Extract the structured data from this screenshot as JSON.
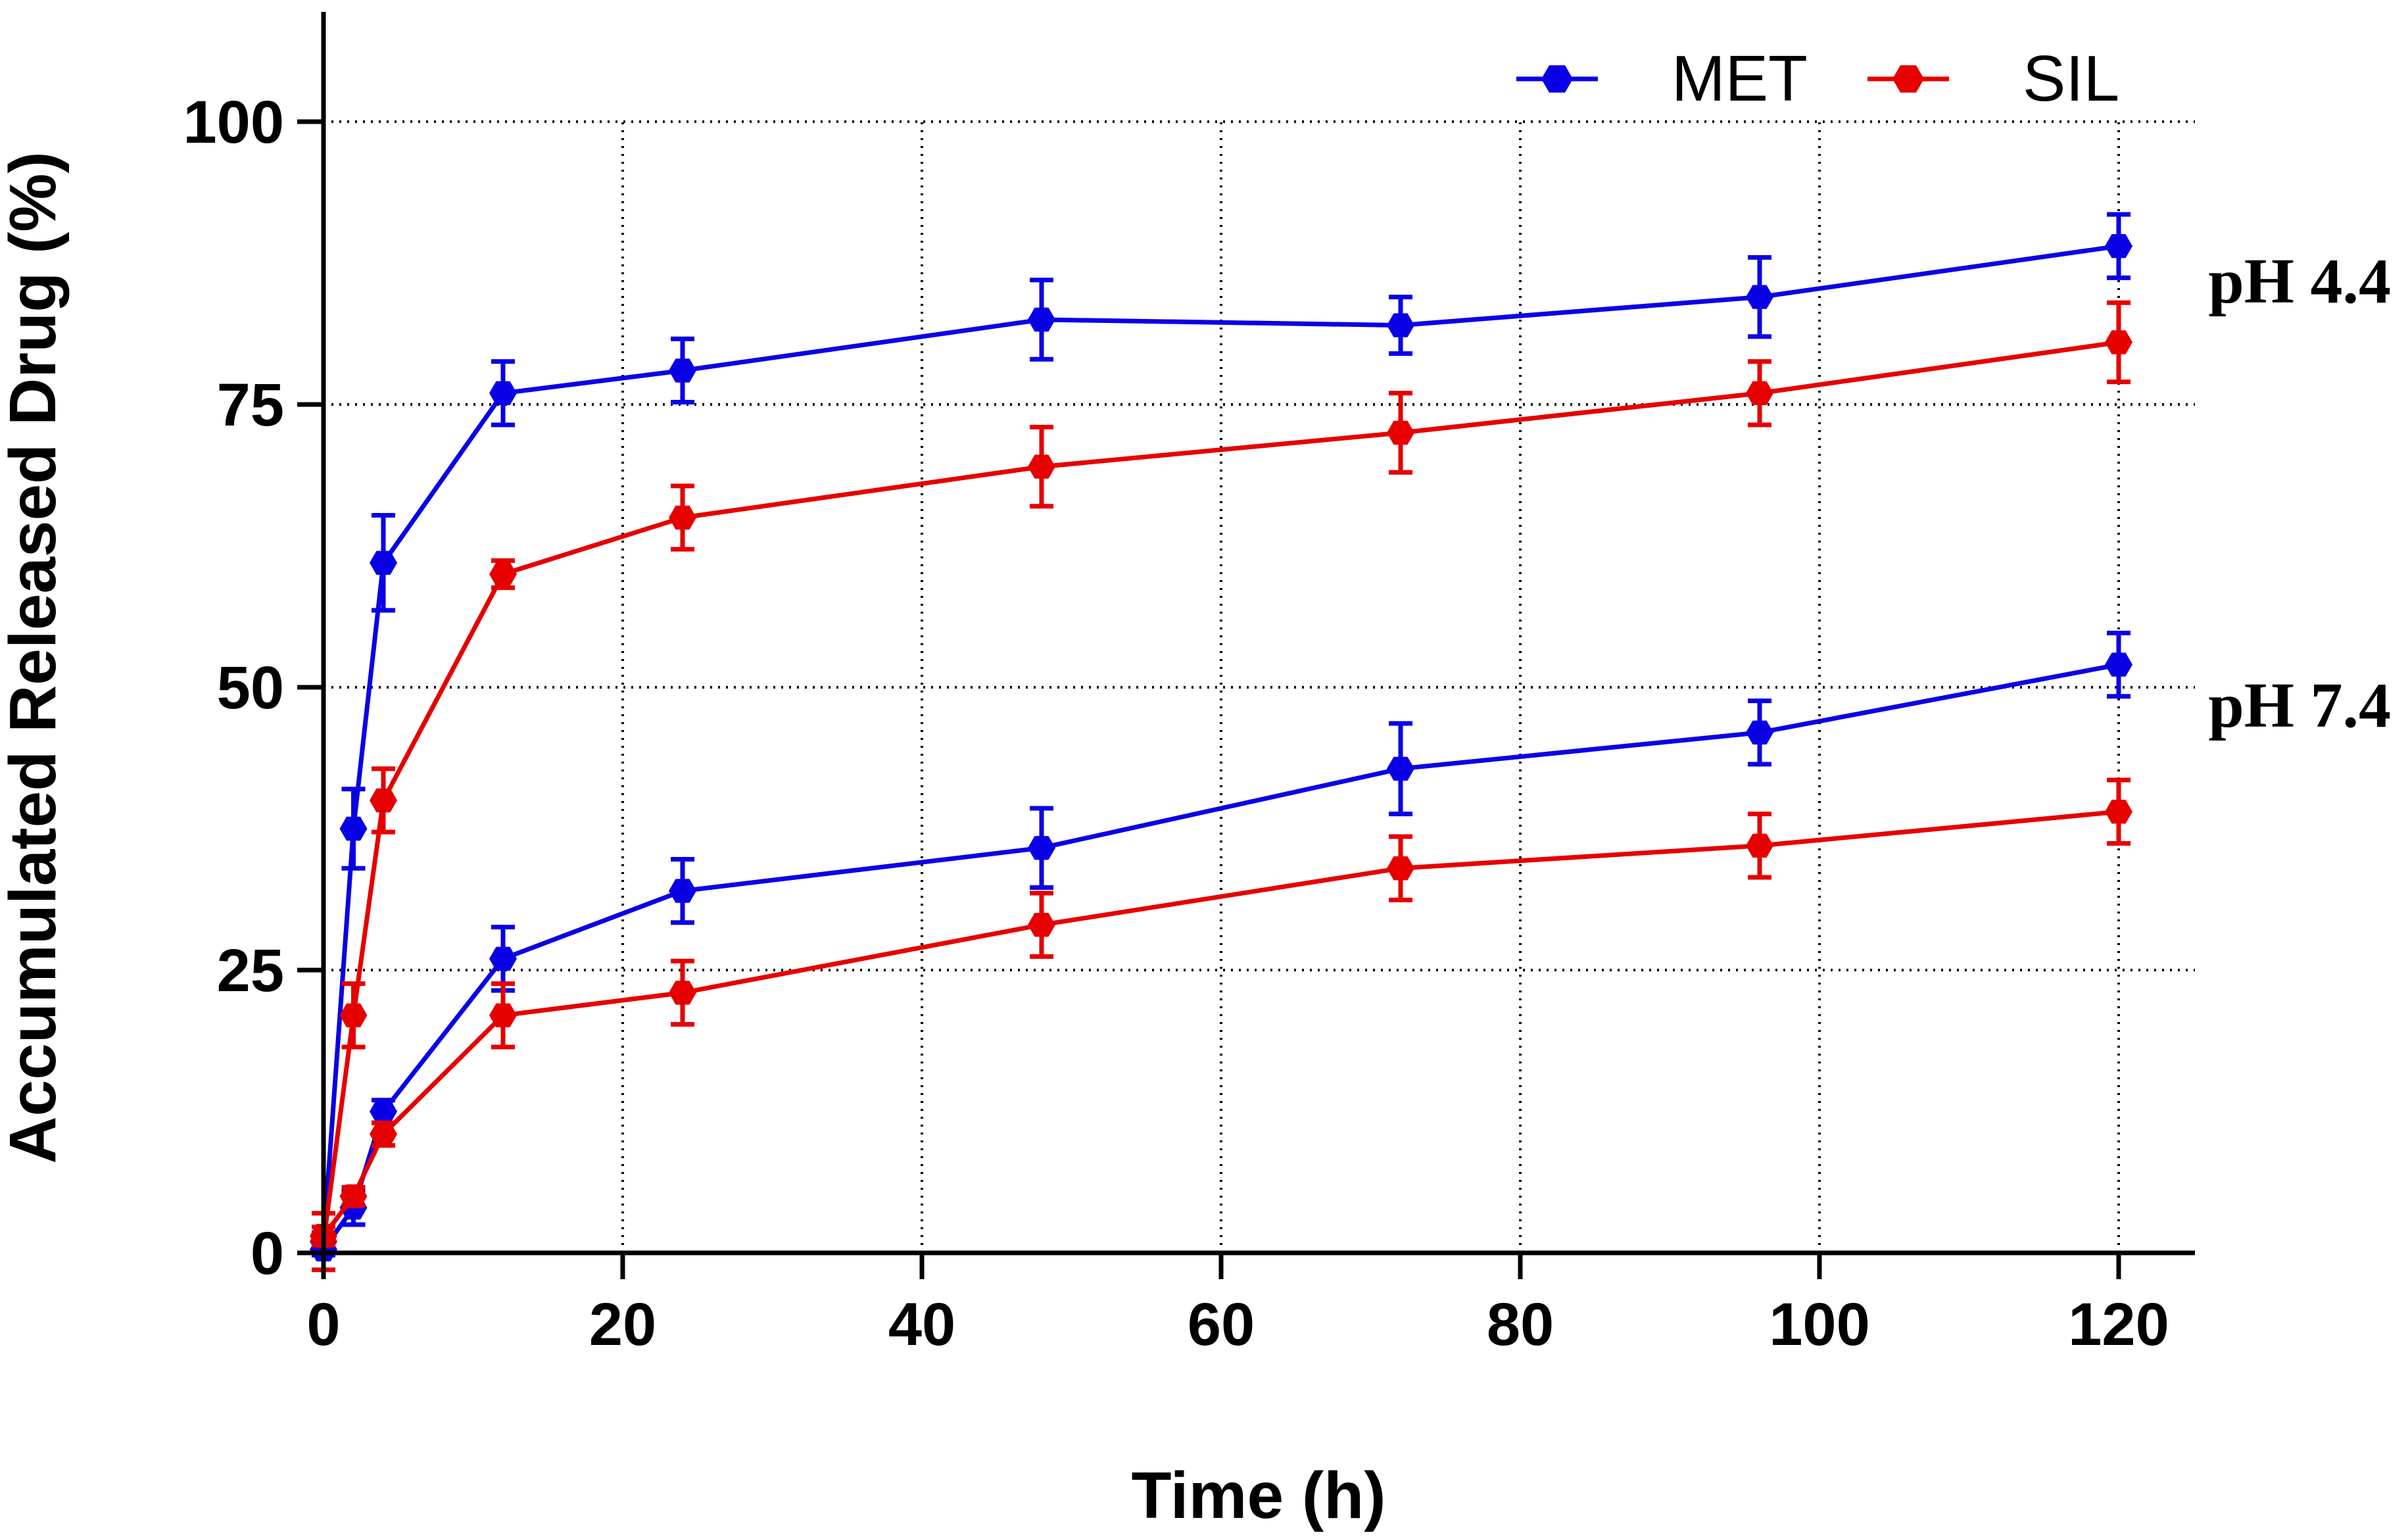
{
  "chart_data": {
    "type": "line",
    "xlabel": "Time (h)",
    "ylabel": "Accumulated Released Drug (%)",
    "xlim": [
      0,
      125
    ],
    "ylim": [
      0,
      110
    ],
    "xticks": [
      0,
      20,
      40,
      60,
      80,
      100,
      120
    ],
    "yticks": [
      0,
      25,
      50,
      75,
      100
    ],
    "x_tick_labels": [
      "0",
      "20",
      "40",
      "60",
      "80",
      "100",
      "120"
    ],
    "y_tick_labels": [
      "0",
      "25",
      "50",
      "75",
      "100"
    ],
    "grid": "dotted",
    "legend": {
      "position": "top-right",
      "entries": [
        {
          "name": "MET",
          "color": "#0a00e6"
        },
        {
          "name": "SIL",
          "color": "#e60000"
        }
      ]
    },
    "annotations": [
      {
        "text": "pH 4.4",
        "x": 121,
        "y": 86
      },
      {
        "text": "pH 7.4",
        "x": 121,
        "y": 48.5
      }
    ],
    "series": [
      {
        "name": "MET",
        "condition": "pH 4.4",
        "color": "#0a00e6",
        "x": [
          0,
          2,
          4,
          12,
          24,
          48,
          72,
          96,
          120
        ],
        "y": [
          1,
          37.5,
          61,
          76,
          78,
          82.5,
          82,
          84.5,
          89
        ],
        "err": [
          0.8,
          3.5,
          4.2,
          2.8,
          2.8,
          3.5,
          2.5,
          3.5,
          2.8
        ]
      },
      {
        "name": "SIL",
        "condition": "pH 4.4",
        "color": "#e60000",
        "x": [
          0,
          2,
          4,
          12,
          24,
          48,
          72,
          96,
          120
        ],
        "y": [
          1,
          21,
          40,
          60,
          65,
          69.5,
          72.5,
          76,
          80.5
        ],
        "err": [
          2.5,
          2.8,
          2.8,
          1.2,
          2.8,
          3.5,
          3.5,
          2.8,
          3.5
        ]
      },
      {
        "name": "MET",
        "condition": "pH 7.4",
        "color": "#0a00e6",
        "x": [
          0,
          2,
          4,
          12,
          24,
          48,
          72,
          96,
          120
        ],
        "y": [
          0.3,
          4,
          12.5,
          26,
          32,
          35.8,
          42.8,
          46,
          52
        ],
        "err": [
          0.5,
          1.5,
          1,
          2.8,
          2.8,
          3.5,
          4,
          2.8,
          2.8
        ]
      },
      {
        "name": "SIL",
        "condition": "pH 7.4",
        "color": "#e60000",
        "x": [
          0,
          2,
          4,
          12,
          24,
          48,
          72,
          96,
          120
        ],
        "y": [
          1.5,
          5,
          10.5,
          21,
          23,
          29,
          34,
          36,
          39
        ],
        "err": [
          0.8,
          0.8,
          1,
          2.8,
          2.8,
          2.8,
          2.8,
          2.8,
          2.8
        ]
      }
    ]
  }
}
